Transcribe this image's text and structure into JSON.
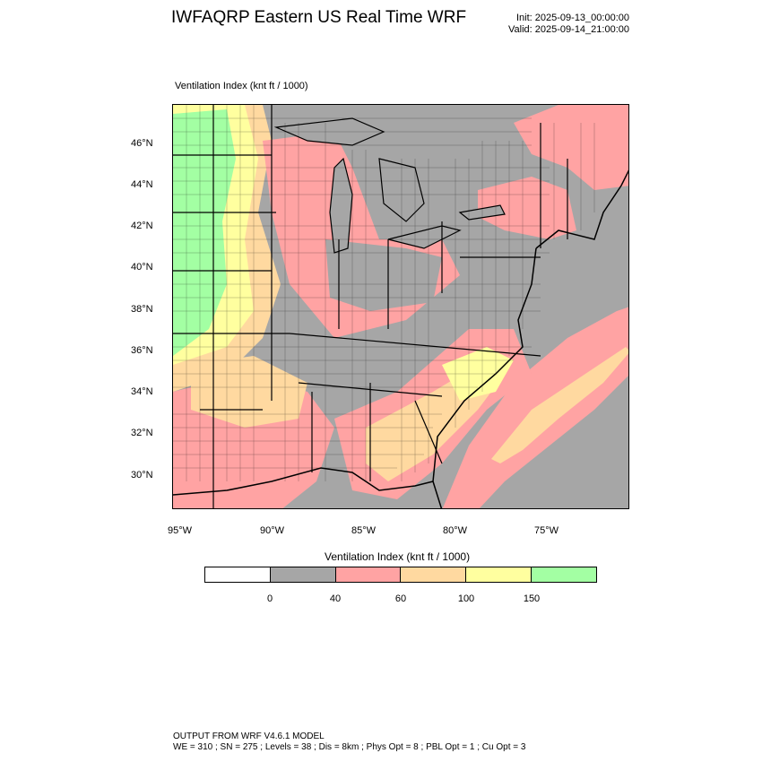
{
  "header": {
    "title": "IWFAQRP Eastern US Real Time WRF",
    "init": "Init: 2025-09-13_00:00:00",
    "valid": "Valid: 2025-09-14_21:00:00"
  },
  "map": {
    "field_label": "Ventilation Index   (knt ft / 1000)",
    "lat_labels": [
      "46°N",
      "44°N",
      "42°N",
      "40°N",
      "38°N",
      "36°N",
      "34°N",
      "32°N",
      "30°N"
    ],
    "lon_labels": [
      "95°W",
      "90°W",
      "85°W",
      "80°W",
      "75°W"
    ],
    "land_color": "#a6a6a6",
    "ocean_color": "#a6a6a6"
  },
  "colorbar": {
    "title": "Ventilation Index  (knt ft / 1000)",
    "colors": [
      "#ffffff",
      "#a6a6a6",
      "#ffa3a3",
      "#ffd9a0",
      "#ffff9f",
      "#a3ffa3"
    ],
    "tick_labels": [
      "0",
      "40",
      "60",
      "100",
      "150"
    ]
  },
  "footer": {
    "line1": "OUTPUT FROM WRF V4.6.1 MODEL",
    "line2": "WE = 310 ; SN = 275 ; Levels = 38 ; Dis = 8km ; Phys Opt = 8 ; PBL Opt = 1 ; Cu Opt = 3"
  }
}
